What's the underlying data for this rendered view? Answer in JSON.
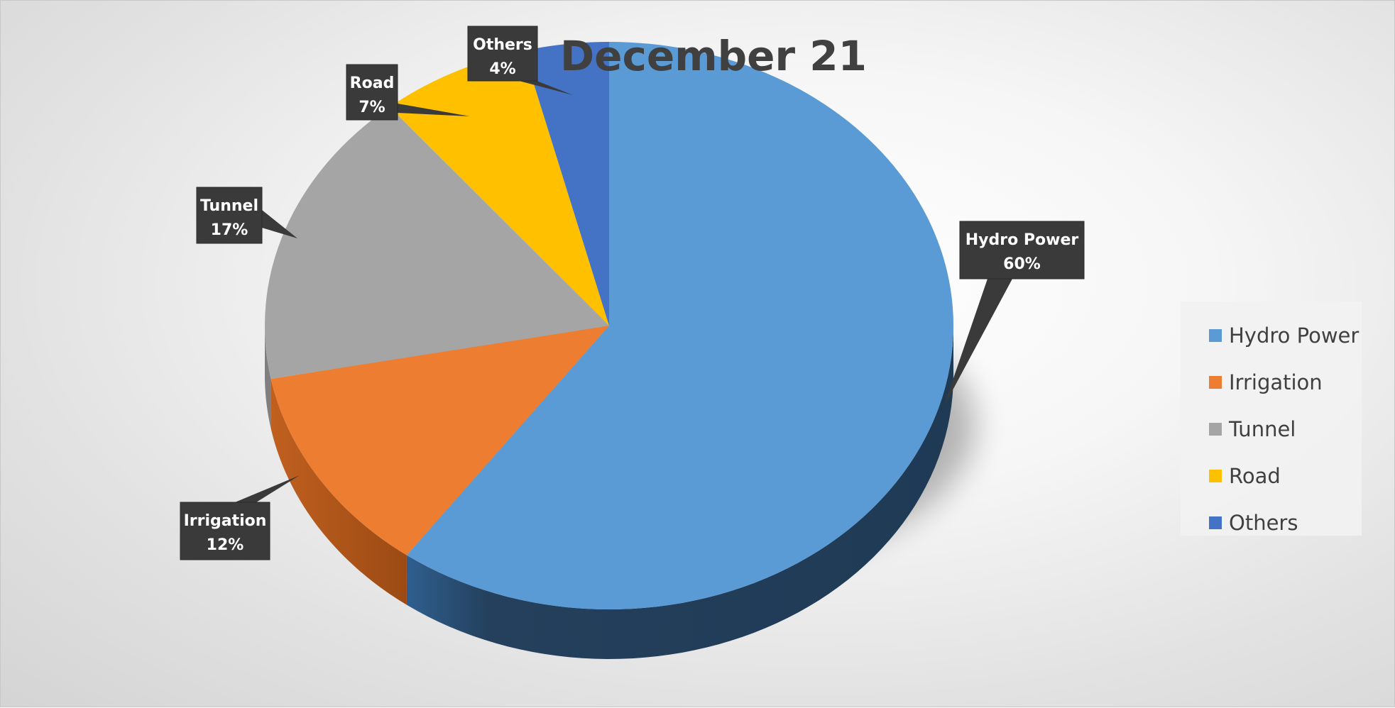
{
  "chart_data": {
    "type": "pie",
    "title": "December 21",
    "categories": [
      "Hydro Power",
      "Irrigation",
      "Tunnel",
      "Road",
      "Others"
    ],
    "values": [
      60,
      12,
      17,
      7,
      4
    ],
    "data_labels": [
      "60%",
      "12%",
      "17%",
      "7%",
      "4%"
    ],
    "colors": [
      "#5B9BD5",
      "#ED7D31",
      "#A5A5A5",
      "#FFC000",
      "#4472C4"
    ],
    "legend_position": "right",
    "style": "3d"
  }
}
